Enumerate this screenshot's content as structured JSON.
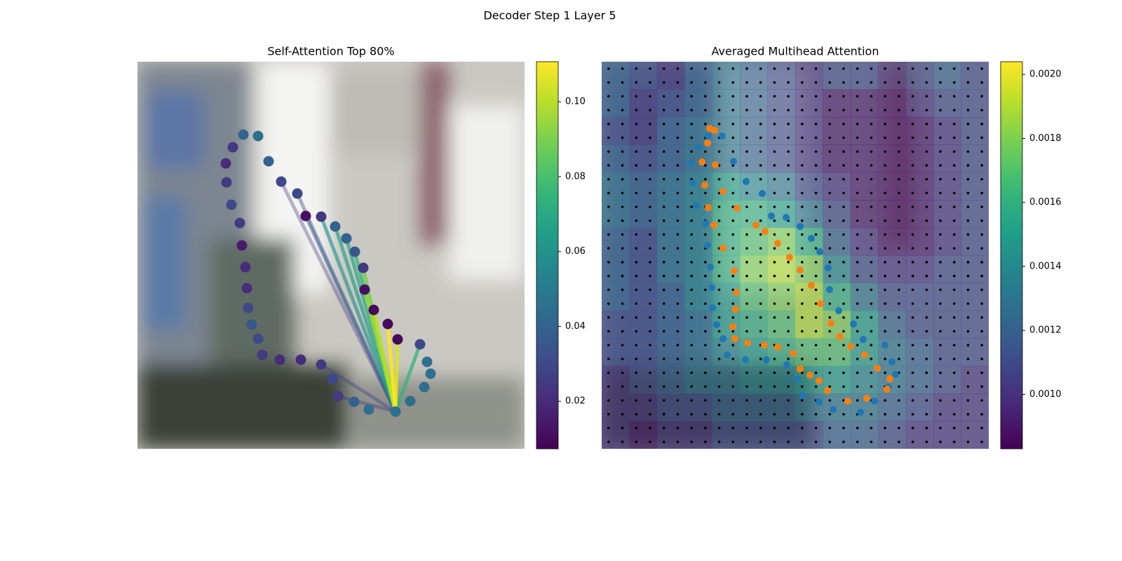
{
  "suptitle": "Decoder Step 1 Layer 5",
  "chart_data": [
    {
      "type": "graph",
      "title": "Self-Attention Top 80%",
      "colormap": "viridis",
      "x": [
        368,
        389,
        409,
        418,
        413,
        403,
        371,
        357,
        337,
        324,
        322,
        310,
        298,
        282,
        262,
        240,
        228,
        205,
        187,
        172,
        151,
        136,
        126,
        127,
        134,
        146,
        149,
        154,
        156,
        158,
        163,
        172,
        178,
        203,
        233,
        262,
        278,
        286,
        309,
        330
      ],
      "y": [
        499,
        484,
        464,
        445,
        428,
        403,
        396,
        374,
        354,
        325,
        294,
        271,
        252,
        235,
        221,
        220,
        188,
        171,
        142,
        106,
        104,
        122,
        145,
        172,
        204,
        230,
        262,
        293,
        323,
        351,
        375,
        395,
        418,
        425,
        425,
        432,
        452,
        477,
        485,
        496
      ],
      "values": [
        0.045,
        0.045,
        0.045,
        0.045,
        0.045,
        0.03,
        0.01,
        0.01,
        0.01,
        0.012,
        0.025,
        0.035,
        0.04,
        0.04,
        0.025,
        0.012,
        0.03,
        0.03,
        0.04,
        0.045,
        0.04,
        0.025,
        0.02,
        0.025,
        0.03,
        0.025,
        0.015,
        0.02,
        0.02,
        0.03,
        0.035,
        0.03,
        0.025,
        0.02,
        0.02,
        0.025,
        0.03,
        0.025,
        0.04,
        0.045
      ],
      "link_source": 0,
      "link_values": [
        null,
        null,
        null,
        null,
        null,
        0.075,
        0.105,
        0.11,
        0.1,
        0.095,
        0.09,
        0.075,
        0.07,
        0.065,
        0.06,
        0.04,
        0.03,
        0.02,
        null,
        null,
        null,
        null,
        null,
        null,
        null,
        null,
        null,
        null,
        null,
        null,
        null,
        null,
        null,
        null,
        null,
        0.03,
        null,
        0.025,
        null,
        null
      ],
      "xlim": [
        0,
        552
      ],
      "ylim": [
        552,
        0
      ],
      "clim": [
        0.0073,
        0.1107
      ],
      "cticks": [
        0.02,
        0.04,
        0.06,
        0.08,
        {
          "value": 0.1,
          "label": "0.10"
        }
      ]
    },
    {
      "type": "heatmap",
      "title": "Averaged Multihead Attention",
      "colormap": "viridis",
      "z": [
        [
          0.0012,
          0.0011,
          0.001,
          0.0012,
          0.0013,
          0.0012,
          0.0011,
          0.001,
          0.0011,
          0.0011,
          0.001,
          0.0011,
          0.0012,
          0.0011
        ],
        [
          0.0012,
          0.001,
          0.0011,
          0.0012,
          0.0013,
          0.0012,
          0.0011,
          0.001,
          0.0009,
          0.0009,
          0.0009,
          0.001,
          0.0011,
          0.0011
        ],
        [
          0.0011,
          0.001,
          0.0012,
          0.0013,
          0.0013,
          0.0012,
          0.0011,
          0.001,
          0.0009,
          0.0009,
          0.0009,
          0.0009,
          0.001,
          0.0011
        ],
        [
          0.0012,
          0.0011,
          0.0012,
          0.0013,
          0.0013,
          0.0012,
          0.0011,
          0.001,
          0.0009,
          0.0009,
          0.0009,
          0.0009,
          0.001,
          0.0011
        ],
        [
          0.0013,
          0.0012,
          0.0013,
          0.0014,
          0.0015,
          0.0014,
          0.0013,
          0.0011,
          0.001,
          0.0009,
          0.0009,
          0.0009,
          0.001,
          0.0011
        ],
        [
          0.0013,
          0.0012,
          0.0013,
          0.0014,
          0.0016,
          0.0016,
          0.0015,
          0.0013,
          0.0011,
          0.0009,
          0.0009,
          0.0009,
          0.001,
          0.0011
        ],
        [
          0.0012,
          0.0011,
          0.0013,
          0.0014,
          0.0016,
          0.0017,
          0.0018,
          0.0016,
          0.0012,
          0.001,
          0.0009,
          0.0009,
          0.001,
          0.0011
        ],
        [
          0.0012,
          0.0011,
          0.0013,
          0.0014,
          0.0016,
          0.0018,
          0.0019,
          0.0018,
          0.0014,
          0.0011,
          0.001,
          0.001,
          0.0011,
          0.0011
        ],
        [
          0.0012,
          0.0011,
          0.0012,
          0.0014,
          0.0015,
          0.0017,
          0.0018,
          0.0019,
          0.0016,
          0.0013,
          0.0011,
          0.0011,
          0.0011,
          0.0011
        ],
        [
          0.0011,
          0.0011,
          0.0012,
          0.0013,
          0.0015,
          0.0016,
          0.0017,
          0.0019,
          0.0018,
          0.0015,
          0.0012,
          0.0011,
          0.0011,
          0.0011
        ],
        [
          0.0011,
          0.0011,
          0.0012,
          0.0013,
          0.0014,
          0.0015,
          0.0016,
          0.0017,
          0.0017,
          0.0015,
          0.0013,
          0.0012,
          0.0011,
          0.0011
        ],
        [
          0.001,
          0.0011,
          0.0012,
          0.0013,
          0.0013,
          0.0014,
          0.0014,
          0.0015,
          0.0015,
          0.0014,
          0.0013,
          0.0012,
          0.0011,
          0.001
        ],
        [
          0.001,
          0.001,
          0.0011,
          0.0011,
          0.0012,
          0.0012,
          0.0012,
          0.0013,
          0.0013,
          0.0013,
          0.0012,
          0.0011,
          0.001,
          0.001
        ],
        [
          0.001,
          0.0009,
          0.001,
          0.001,
          0.0011,
          0.0011,
          0.0011,
          0.0011,
          0.0012,
          0.0012,
          0.0011,
          0.001,
          0.001,
          0.001
        ]
      ],
      "series": [
        {
          "color": "#1f77b4",
          "x": [
            152,
            172,
            138,
            127,
            130,
            135,
            148,
            151,
            155,
            157,
            158,
            164,
            173,
            179,
            205,
            235,
            264,
            279,
            287,
            310,
            330,
            369,
            389,
            409,
            419,
            414,
            404,
            373,
            359,
            338,
            325,
            323,
            311,
            299,
            283,
            263,
            242,
            229,
            206,
            188
          ],
          "y": [
            106,
            106,
            122,
            145,
            173,
            205,
            231,
            262,
            293,
            322,
            351,
            375,
            395,
            418,
            425,
            425,
            432,
            453,
            476,
            485,
            496,
            500,
            484,
            464,
            446,
            428,
            404,
            396,
            374,
            355,
            325,
            294,
            271,
            252,
            235,
            222,
            220,
            188,
            171,
            142
          ]
        },
        {
          "color": "#ff7f0e",
          "x": [
            154,
            161,
            151,
            143,
            162,
            147,
            173,
            152,
            193,
            160,
            220,
            233,
            173,
            251,
            268,
            189,
            283,
            192,
            299,
            191,
            312,
            187,
            327,
            190,
            340,
            208,
            355,
            232,
            251,
            375,
            273,
            393,
            283,
            297,
            411,
            310,
            407,
            322,
            378,
            351
          ],
          "y": [
            95,
            98,
            116,
            143,
            147,
            176,
            185,
            208,
            209,
            233,
            233,
            242,
            266,
            259,
            279,
            298,
            297,
            329,
            319,
            353,
            345,
            378,
            373,
            395,
            392,
            401,
            406,
            404,
            407,
            418,
            416,
            437,
            438,
            447,
            452,
            455,
            467,
            469,
            480,
            484
          ]
        }
      ],
      "xlim": [
        0,
        552
      ],
      "ylim": [
        552,
        0
      ],
      "clim": [
        0.00083,
        0.00204
      ],
      "cticks": [
        {
          "value": 0.001,
          "label": "0.0010"
        },
        0.0012,
        0.0014,
        0.0016,
        0.0018,
        {
          "value": 0.002,
          "label": "0.0020"
        }
      ]
    }
  ]
}
